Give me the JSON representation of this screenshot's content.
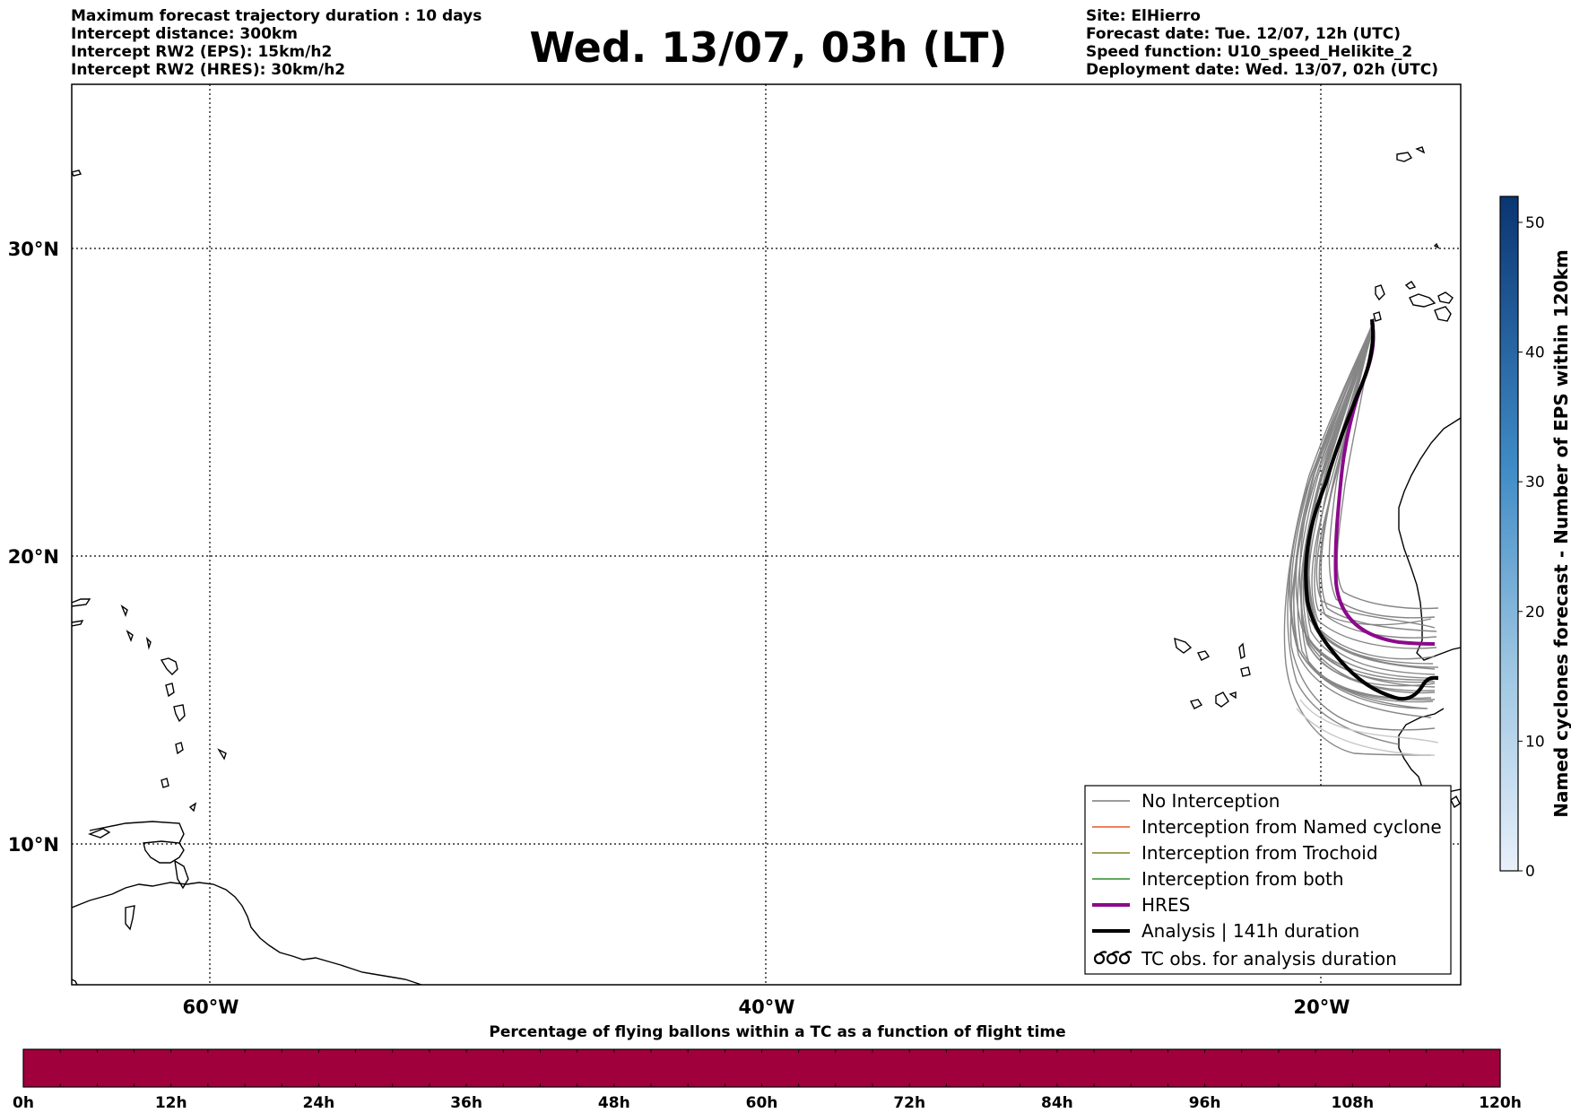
{
  "header": {
    "left_lines": [
      "Maximum forecast trajectory duration : 10 days",
      "Intercept distance: 300km",
      "Intercept RW2 (EPS):  15km/h2",
      "Intercept RW2 (HRES): 30km/h2"
    ],
    "title": "Wed. 13/07, 03h (LT)",
    "right_lines": [
      "Site: ElHierro",
      "Forecast date: Tue. 12/07, 12h (UTC)",
      "Speed function: U10_speed_Helikite_2",
      "Deployment date: Wed. 13/07, 02h (UTC)"
    ]
  },
  "map": {
    "lat_labels": [
      "30°N",
      "20°N",
      "10°N"
    ],
    "lon_labels": [
      "60°W",
      "40°W",
      "20°W"
    ],
    "grid": "dotted",
    "colors": {
      "no_interception": "#7a7a7a",
      "named_cyclone": "#e8552a",
      "trochoid": "#808020",
      "both": "#2a8a2a",
      "hres": "#8b0a8b",
      "analysis": "#000000"
    }
  },
  "legend": {
    "placement": "bottom-right",
    "items": [
      {
        "label": "No Interception",
        "style": "thin-gray"
      },
      {
        "label": "Interception from Named cyclone",
        "style": "thin-orange"
      },
      {
        "label": "Interception from Trochoid",
        "style": "thin-olive"
      },
      {
        "label": "Interception from both",
        "style": "thin-green"
      },
      {
        "label": "HRES",
        "style": "thick-purple"
      },
      {
        "label": "Analysis | 141h duration",
        "style": "thick-black"
      },
      {
        "label": "TC obs. for analysis duration",
        "style": "tc-symbols"
      }
    ]
  },
  "colorbar": {
    "label": "Named cyclones forecast - Number of EPS within 120km",
    "ticks": [
      "0",
      "10",
      "20",
      "30",
      "40",
      "50"
    ],
    "min": 0,
    "max": 52,
    "color_low": "#e6eef8",
    "color_high": "#0a3572"
  },
  "timebar": {
    "title": "Percentage of flying ballons within a TC as a function of flight time",
    "ticks": [
      "0h",
      "12h",
      "24h",
      "36h",
      "48h",
      "60h",
      "72h",
      "84h",
      "96h",
      "108h",
      "120h"
    ],
    "fill_color": "#a0003c"
  }
}
